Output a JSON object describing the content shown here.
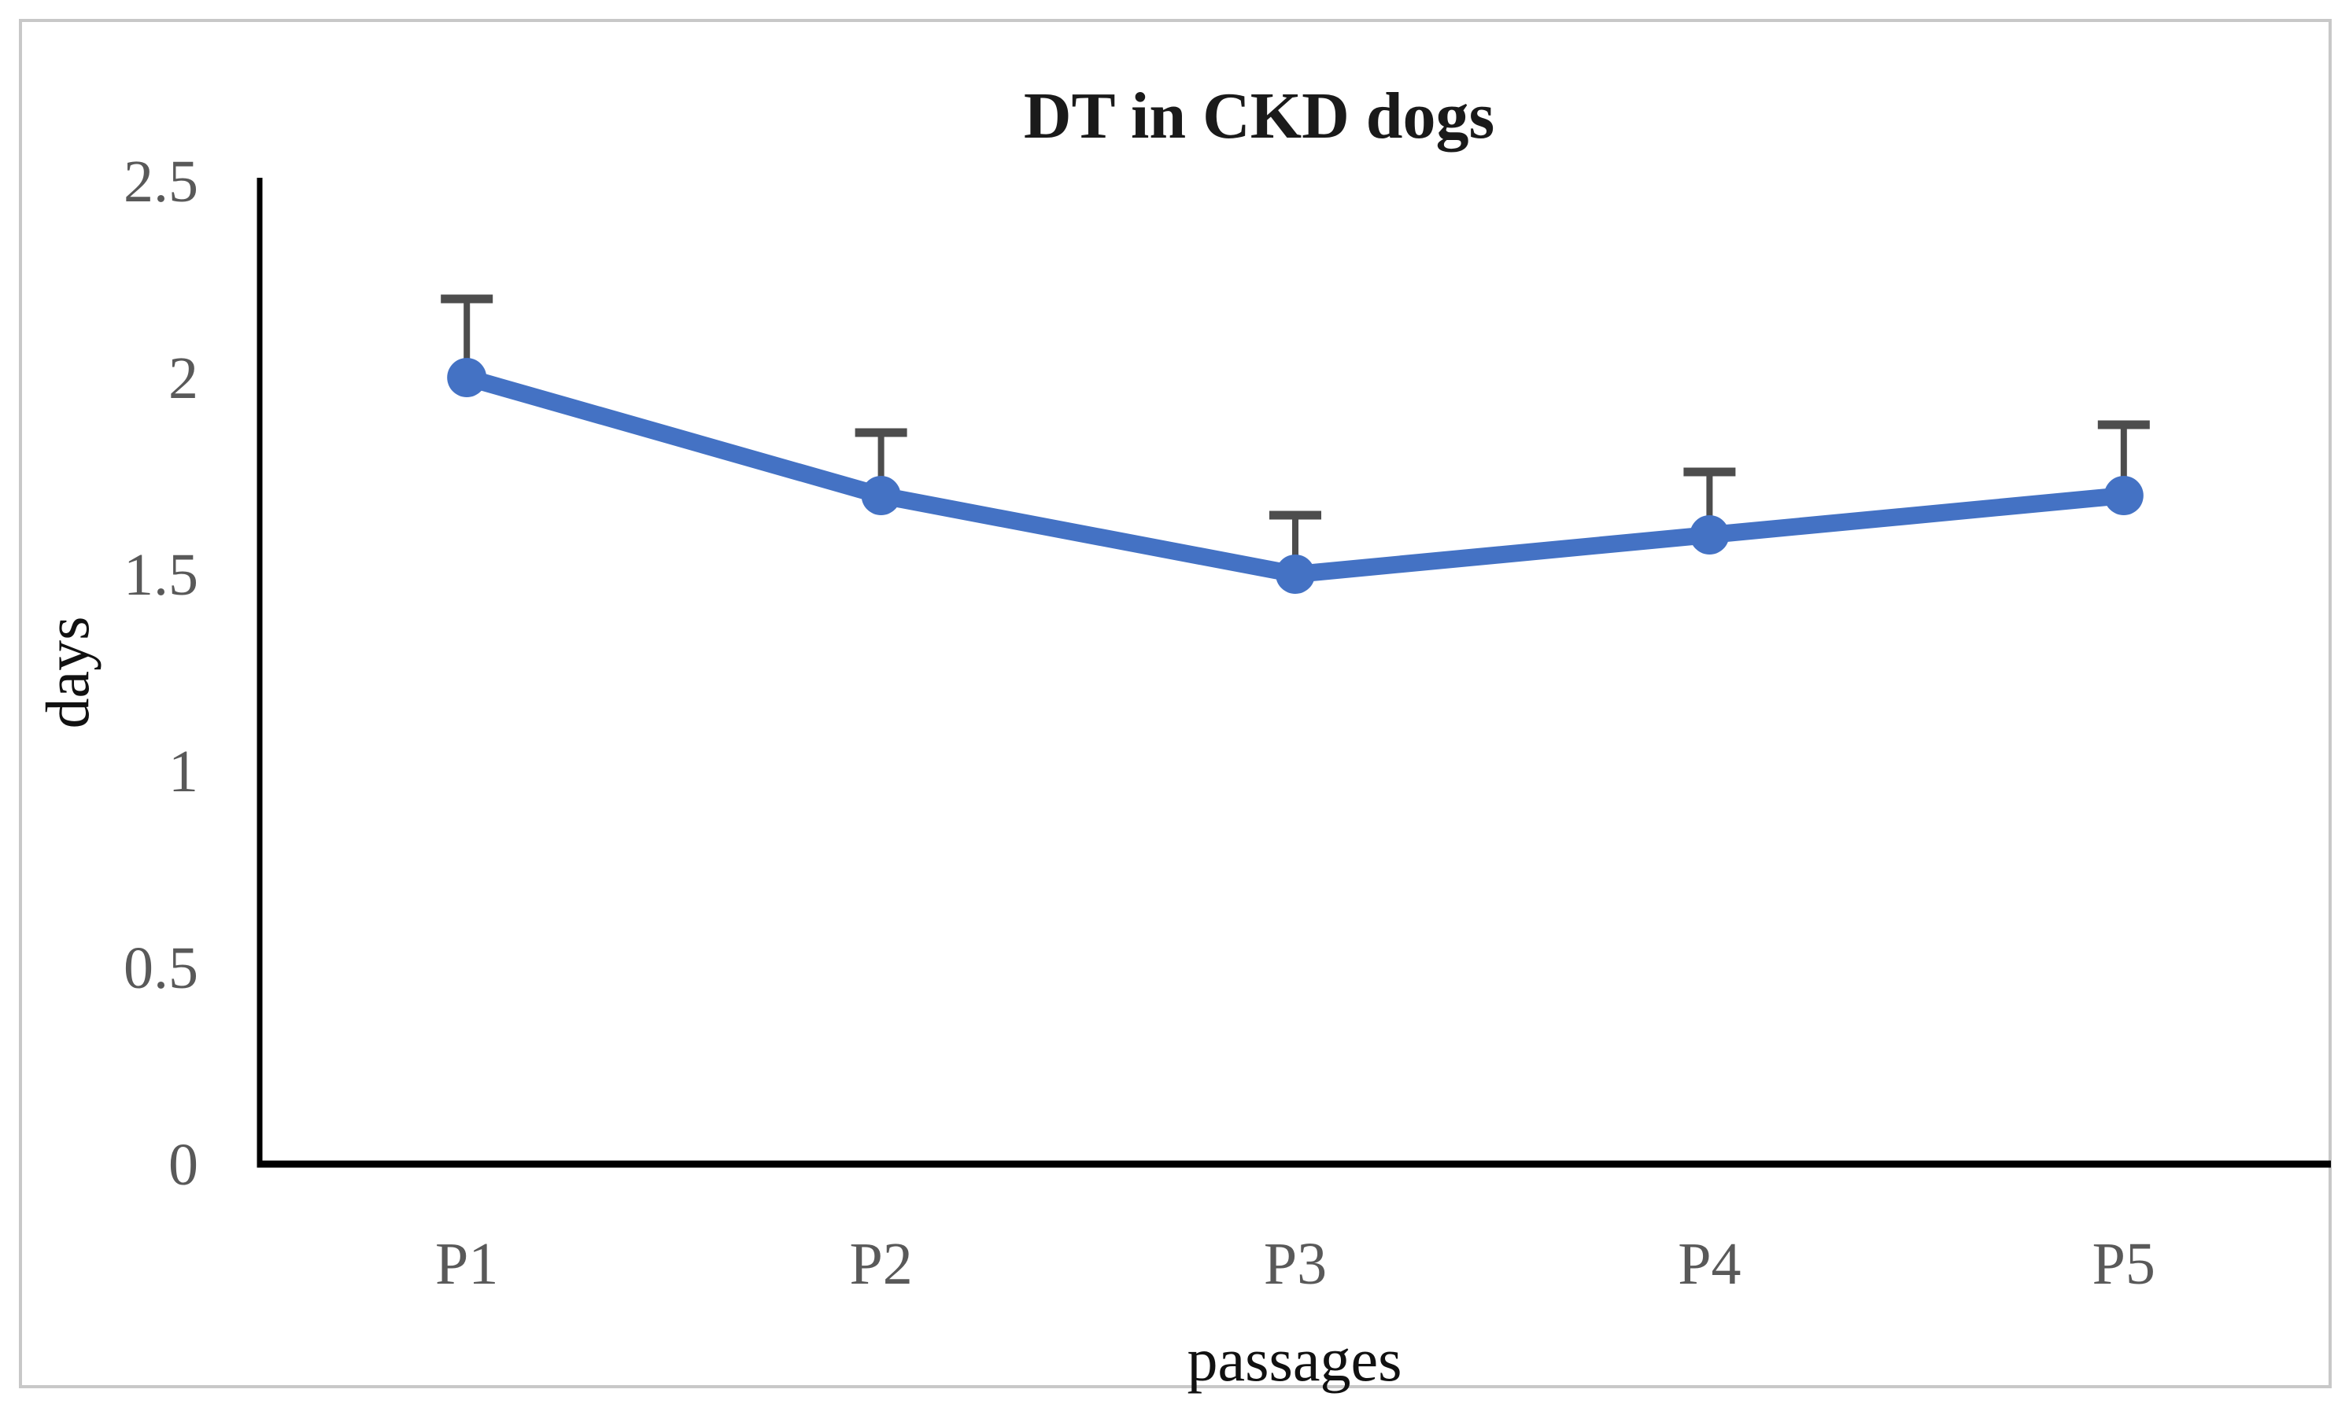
{
  "chart_data": {
    "type": "line",
    "title": "DT in CKD dogs",
    "xlabel": "passages",
    "ylabel": "days",
    "categories": [
      "P1",
      "P2",
      "P3",
      "P4",
      "P5"
    ],
    "series": [
      {
        "values": [
          2.0,
          1.7,
          1.5,
          1.6,
          1.7
        ],
        "error_up": [
          0.2,
          0.16,
          0.15,
          0.16,
          0.18
        ]
      }
    ],
    "ylim": [
      0,
      2.5
    ],
    "y_ticks": [
      2.5,
      2,
      1.5,
      1,
      0.5,
      0
    ],
    "grid": false,
    "legend_position": "none",
    "marker": "circle",
    "colors": {
      "line": "#4472C4",
      "marker": "#4472C4",
      "error_bar": "#4d4d4d",
      "tick_label": "#595959",
      "axis": "#000000",
      "title": "#1a1a1a",
      "frame_border": "#c8c8c8"
    }
  }
}
